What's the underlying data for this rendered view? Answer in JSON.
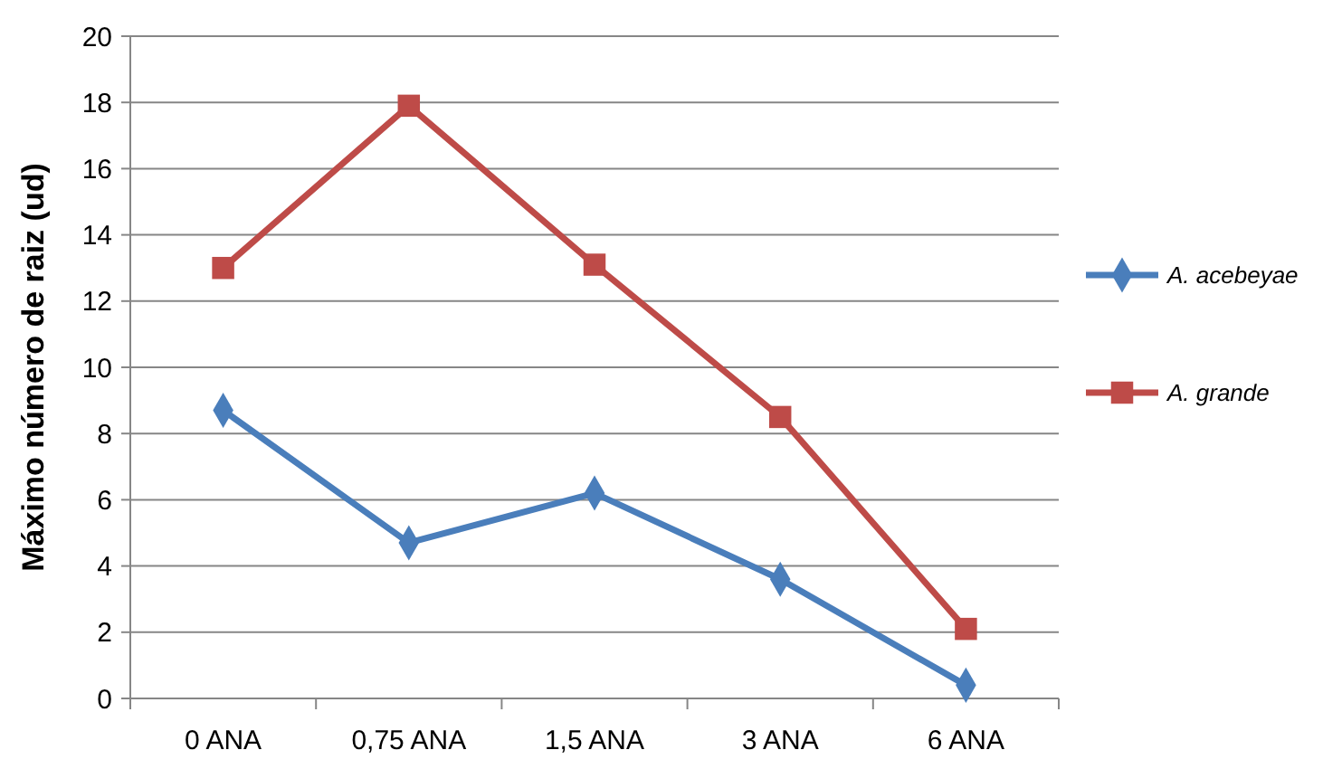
{
  "chart_data": {
    "type": "line",
    "ylabel": "Máximo número de raiz (ud)",
    "categories": [
      "0 ANA",
      "0,75 ANA",
      "1,5 ANA",
      "3 ANA",
      "6 ANA"
    ],
    "series": [
      {
        "name": "A. acebeyae",
        "color": "#4a7ebb",
        "values": [
          8.7,
          4.7,
          6.2,
          3.6,
          0.4
        ],
        "marker": "diamond"
      },
      {
        "name": "A. grande",
        "color": "#be4b48",
        "values": [
          13,
          17.9,
          13.1,
          8.5,
          2.1
        ],
        "marker": "square"
      }
    ],
    "ylim": [
      0,
      20
    ],
    "yticks": [
      0,
      2,
      4,
      6,
      8,
      10,
      12,
      14,
      16,
      18,
      20
    ],
    "grid": "y",
    "legend": "right",
    "line_style": "solid"
  }
}
